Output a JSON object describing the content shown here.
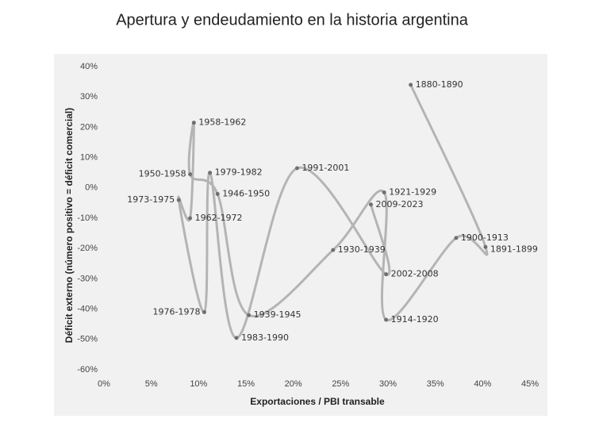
{
  "chart_data": {
    "type": "connected-scatter",
    "title": "Apertura y endeudamiento en la historia argentina",
    "x_label": "Exportaciones / PBI transable",
    "y_label": "Déficit externo (número positivo = déficit comercial)",
    "point_labels": [
      "1880-1890",
      "1891-1899",
      "1900-1913",
      "1914-1920",
      "1921-1929",
      "1930-1939",
      "1939-1945",
      "1946-1950",
      "1950-1958",
      "1958-1962",
      "1962-1972",
      "1973-1975",
      "1976-1978",
      "1979-1982",
      "1983-1990",
      "1991-2001",
      "2002-2008",
      "2009-2023"
    ],
    "x": [
      32.4,
      40.3,
      37.2,
      29.8,
      29.6,
      24.2,
      15.3,
      12.0,
      9.1,
      9.5,
      9.1,
      7.9,
      10.6,
      11.2,
      14.0,
      20.4,
      29.8,
      28.2
    ],
    "values": [
      34,
      -19.5,
      -16.5,
      -43.5,
      -1.5,
      -20.5,
      -42,
      -2,
      4.5,
      21.5,
      -10,
      -4,
      -41,
      5,
      -49.5,
      6.5,
      -28.5,
      -5.5
    ],
    "line_color": "#b4b4b4",
    "marker_color": "#707070",
    "xlim": [
      0,
      45
    ],
    "ylim": [
      -60,
      40
    ],
    "xticks": [
      {
        "value": 0,
        "label": "0%"
      },
      {
        "value": 5,
        "label": "5%"
      },
      {
        "value": 10,
        "label": "10%"
      },
      {
        "value": 15,
        "label": "15%"
      },
      {
        "value": 20,
        "label": "20%"
      },
      {
        "value": 25,
        "label": "25%"
      },
      {
        "value": 30,
        "label": "30%"
      },
      {
        "value": 35,
        "label": "35%"
      },
      {
        "value": 40,
        "label": "40%"
      },
      {
        "value": 45,
        "label": "45%"
      }
    ],
    "yticks": [
      {
        "value": 40,
        "label": "40%"
      },
      {
        "value": 30,
        "label": "30%"
      },
      {
        "value": 20,
        "label": "20%"
      },
      {
        "value": 10,
        "label": "10%"
      },
      {
        "value": 0,
        "label": "0%"
      },
      {
        "value": -10,
        "label": "-10%"
      },
      {
        "value": -20,
        "label": "-20%"
      },
      {
        "value": -30,
        "label": "-30%"
      },
      {
        "value": -40,
        "label": "-40%"
      },
      {
        "value": -50,
        "label": "-50%"
      },
      {
        "value": -60,
        "label": "-60%"
      }
    ],
    "grid": false
  }
}
